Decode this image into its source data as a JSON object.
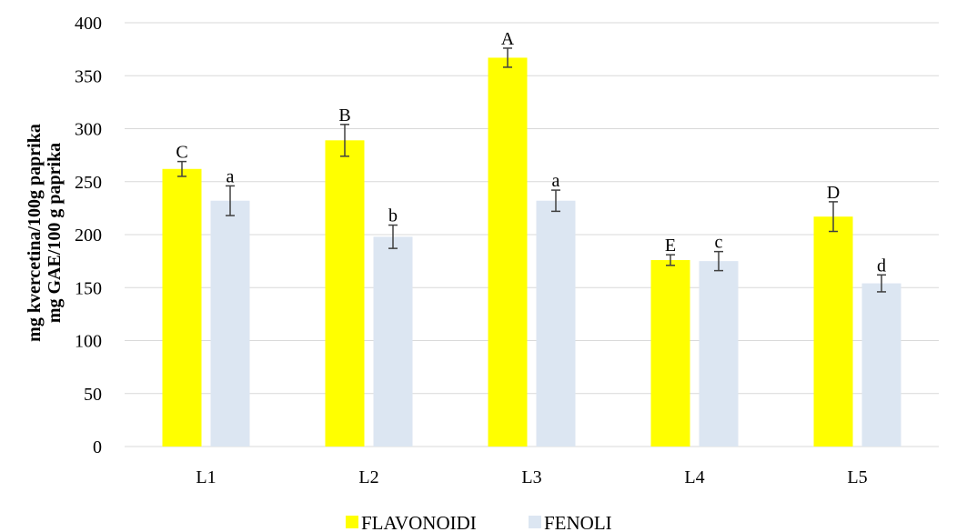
{
  "chart_data": {
    "type": "bar",
    "title": "",
    "categories": [
      "L1",
      "L2",
      "L3",
      "L4",
      "L5"
    ],
    "ylabel_lines": [
      "mg kvercetina/100g paprika",
      "mg GAE/100 g paprika"
    ],
    "xlabel": "",
    "ylim": [
      0,
      400
    ],
    "yticks": [
      0,
      50,
      100,
      150,
      200,
      250,
      300,
      350,
      400
    ],
    "grid": true,
    "legend_position": "bottom",
    "series": [
      {
        "name": "FLAVONOIDI",
        "color": "#ffff00",
        "values": [
          262,
          289,
          367,
          176,
          217
        ],
        "errors": [
          7,
          15,
          9,
          5,
          14
        ],
        "labels": [
          "C",
          "B",
          "A",
          "E",
          "D"
        ]
      },
      {
        "name": "FENOLI",
        "color": "#dce6f2",
        "values": [
          232,
          198,
          232,
          175,
          154
        ],
        "errors": [
          14,
          11,
          10,
          9,
          8
        ],
        "labels": [
          "a",
          "b",
          "a",
          "c",
          "d"
        ]
      }
    ]
  }
}
